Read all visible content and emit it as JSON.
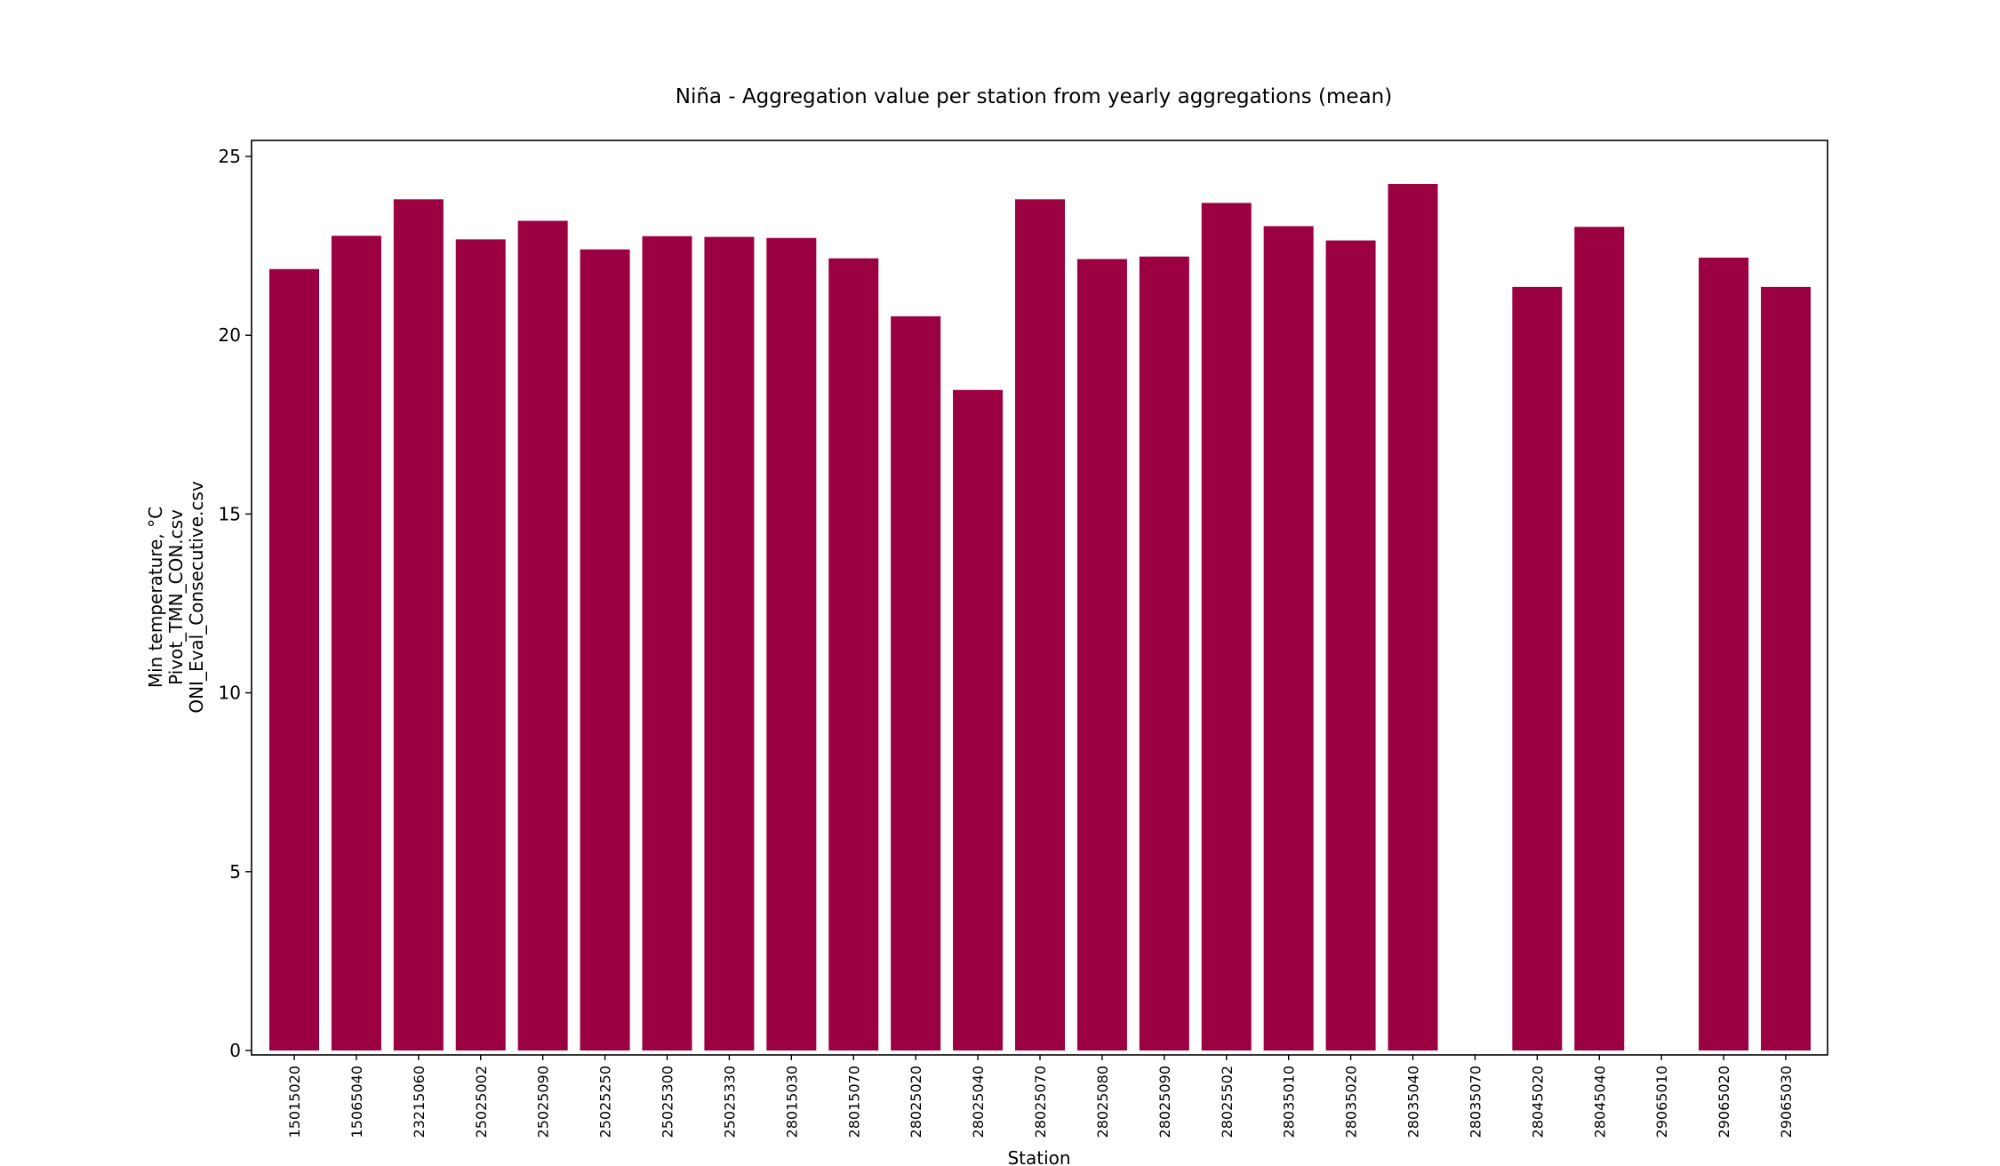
{
  "chart_data": {
    "type": "bar",
    "title": "Niña - Aggregation value per station from yearly aggregations (mean)",
    "xlabel": "Station",
    "ylabel_lines": [
      "Min temperature, °C",
      "Pivot_TMN_CON.csv",
      "ONI_Eval_Consecutive.csv"
    ],
    "ylim": [
      0,
      25
    ],
    "yticks": [
      0,
      5,
      10,
      15,
      20,
      25
    ],
    "grid": false,
    "legend": "none",
    "bar_color": "#9b0041",
    "categories": [
      "15015020",
      "15065040",
      "23215060",
      "25025002",
      "25025090",
      "25025250",
      "25025300",
      "25025330",
      "28015030",
      "28015070",
      "28025020",
      "28025040",
      "28025070",
      "28025080",
      "28025090",
      "28025502",
      "28035010",
      "28035020",
      "28035040",
      "28035070",
      "28045020",
      "28045040",
      "29065010",
      "29065020",
      "29065030"
    ],
    "values": [
      21.85,
      22.78,
      23.8,
      22.68,
      23.2,
      22.4,
      22.77,
      22.75,
      22.72,
      22.15,
      20.53,
      18.47,
      23.8,
      22.13,
      22.2,
      23.7,
      23.05,
      22.65,
      24.23,
      0,
      21.35,
      23.03,
      0,
      22.17,
      21.35
    ]
  }
}
